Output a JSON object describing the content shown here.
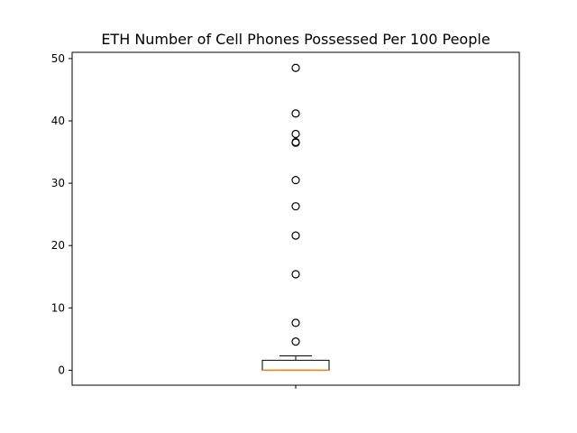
{
  "chart_data": {
    "type": "box",
    "title": "ETH Number of Cell Phones Possessed Per 100 People",
    "xlabel": "",
    "ylabel": "",
    "categories": [
      "1"
    ],
    "ylim": [
      -2.4,
      51.0
    ],
    "yticks": [
      0,
      10,
      20,
      30,
      40,
      50
    ],
    "grid": false,
    "box": {
      "whisker_low": 0.0,
      "q1": 0.0,
      "median": 0.0,
      "q3": 1.6,
      "whisker_high": 2.3
    },
    "outliers": [
      4.6,
      7.6,
      15.4,
      21.6,
      26.3,
      30.5,
      36.5,
      36.6,
      37.9,
      41.2,
      48.5
    ],
    "colors": {
      "median": "#ff7f0e",
      "box": "#000000",
      "outlier": "#000000"
    }
  }
}
